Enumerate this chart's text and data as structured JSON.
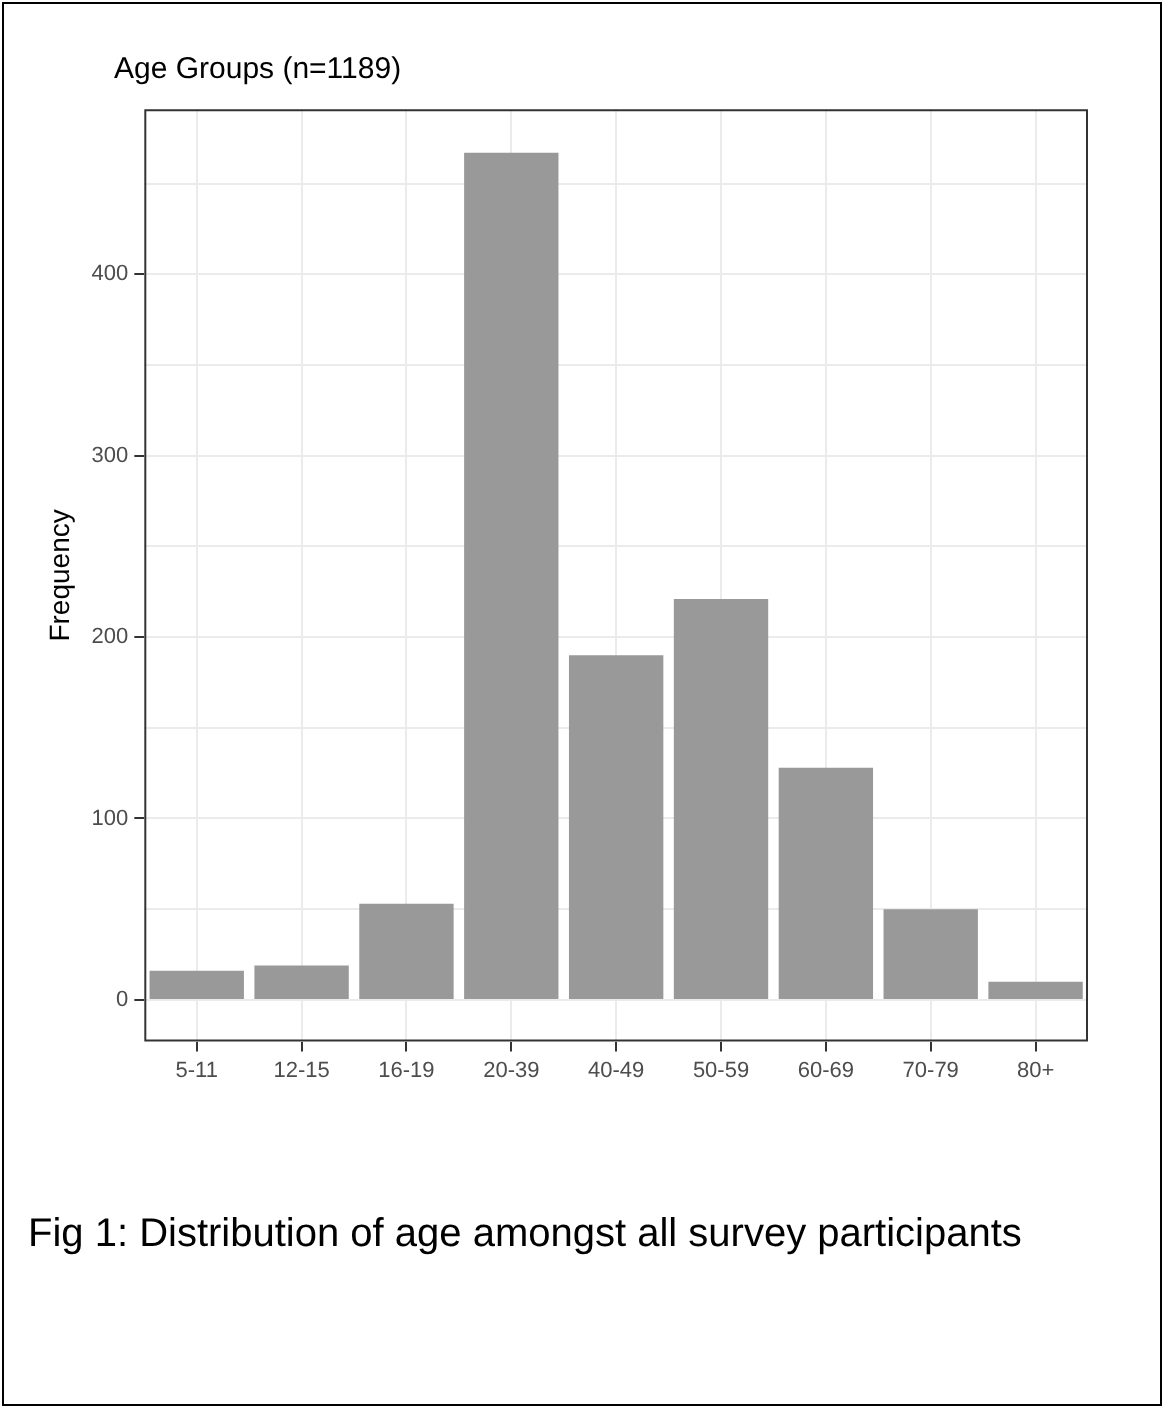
{
  "chart_data": {
    "type": "bar",
    "title": "Age Groups (n=1189)",
    "ylabel": "Frequency",
    "categories": [
      "5-11",
      "12-15",
      "16-19",
      "20-39",
      "40-49",
      "50-59",
      "60-69",
      "70-79",
      "80+"
    ],
    "values": [
      16,
      19,
      53,
      467,
      190,
      221,
      128,
      50,
      10
    ],
    "color": "#999999",
    "ylim": [
      -23,
      491
    ],
    "yticks": [
      0,
      {
        "value": 50,
        "label": null
      },
      100,
      {
        "value": 150,
        "label": null
      },
      200,
      {
        "value": 250,
        "label": null
      },
      300,
      {
        "value": 350,
        "label": null
      },
      400,
      {
        "value": 450,
        "label": null
      }
    ],
    "grid": true,
    "annotations": [
      "Fig 1: Distribution of age amongst all survey participants"
    ]
  }
}
